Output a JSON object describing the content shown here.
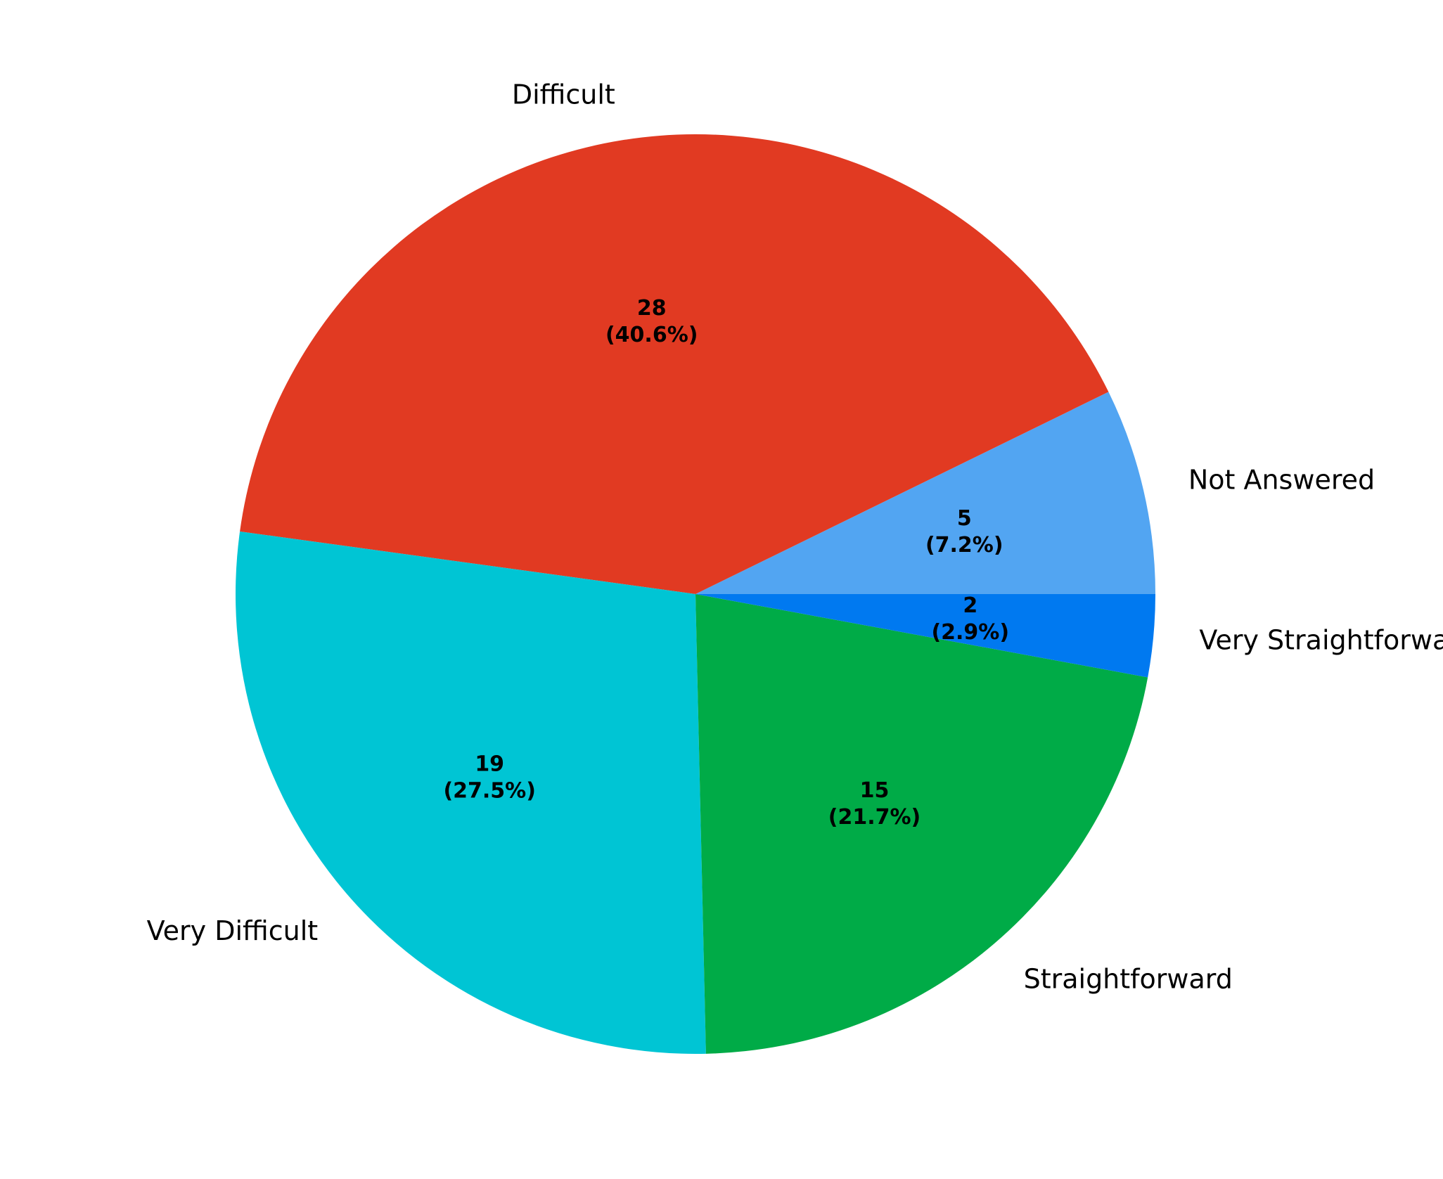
{
  "chart_data": {
    "type": "pie",
    "slices": [
      {
        "label": "Not Answered",
        "value": 5,
        "percent_text": "(7.2%)",
        "color": "#52a5f2"
      },
      {
        "label": "Difficult",
        "value": 28,
        "percent_text": "(40.6%)",
        "color": "#e13a22"
      },
      {
        "label": "Very Difficult",
        "value": 19,
        "percent_text": "(27.5%)",
        "color": "#00c5d4"
      },
      {
        "label": "Straightforward",
        "value": 15,
        "percent_text": "(21.7%)",
        "color": "#00ab47"
      },
      {
        "label": "Very Straightforward",
        "value": 2,
        "percent_text": "(2.9%)",
        "color": "#0079f0"
      }
    ],
    "start_angle_deg": 0,
    "direction": "counterclockwise",
    "legend": "none"
  }
}
